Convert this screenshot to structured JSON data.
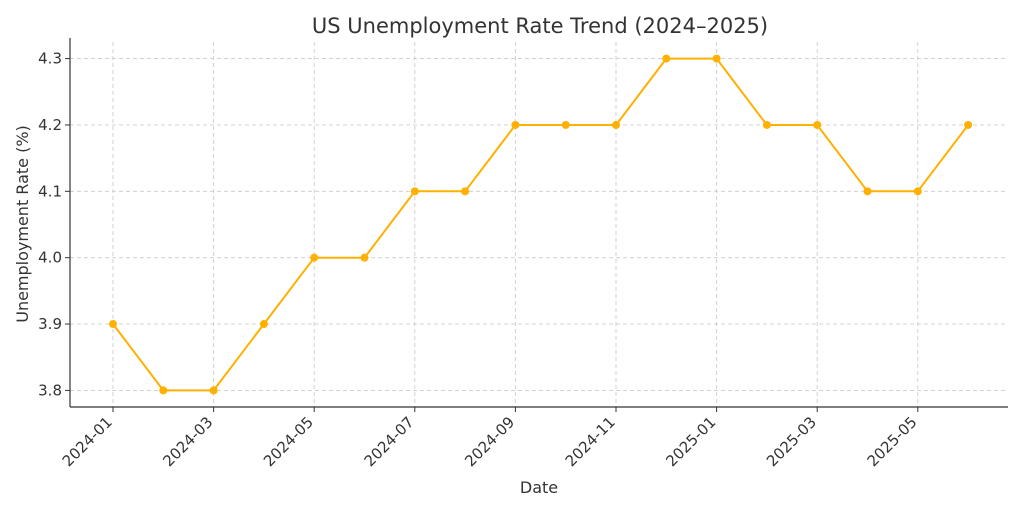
{
  "chart_data": {
    "type": "line",
    "title": "US Unemployment Rate Trend (2024–2025)",
    "xlabel": "Date",
    "ylabel": "Unemployment Rate (%)",
    "x": [
      "2024-01",
      "2024-02",
      "2024-03",
      "2024-04",
      "2024-05",
      "2024-06",
      "2024-07",
      "2024-08",
      "2024-09",
      "2024-10",
      "2024-11",
      "2024-12",
      "2025-01",
      "2025-02",
      "2025-03",
      "2025-04",
      "2025-05",
      "2025-06"
    ],
    "series": [
      {
        "values": [
          3.9,
          3.8,
          3.8,
          3.9,
          4.0,
          4.0,
          4.1,
          4.1,
          4.2,
          4.2,
          4.2,
          4.3,
          4.3,
          4.2,
          4.2,
          4.1,
          4.1,
          4.2
        ]
      }
    ],
    "xticks": [
      "2024-01",
      "2024-03",
      "2024-05",
      "2024-07",
      "2024-09",
      "2024-11",
      "2025-01",
      "2025-03",
      "2025-05"
    ],
    "yticks": [
      "3.8",
      "3.9",
      "4.0",
      "4.1",
      "4.2",
      "4.3"
    ],
    "ylim": [
      3.775,
      4.325
    ],
    "grid": true,
    "line_color": "#FFB000",
    "marker": "circle"
  }
}
